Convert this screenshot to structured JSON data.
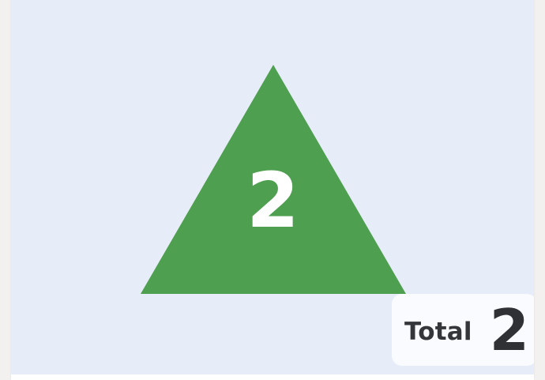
{
  "visual": {
    "shape_icon": "triangle-icon",
    "triangle_value": "2",
    "triangle_color": "#4f9f50",
    "stage_background": "#e7edf8"
  },
  "summary": {
    "label": "Total",
    "value": "2"
  }
}
